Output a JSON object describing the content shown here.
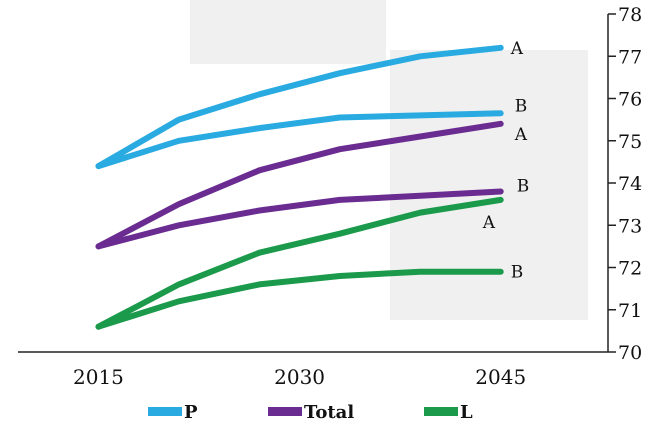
{
  "chart_data": {
    "type": "line",
    "title": "",
    "xlabel": "",
    "ylabel": "",
    "x_ticks": [
      "2015",
      "2030",
      "2045"
    ],
    "y_ticks": [
      "70",
      "71",
      "72",
      "73",
      "74",
      "75",
      "76",
      "77",
      "78"
    ],
    "ylim": [
      70,
      78
    ],
    "xlim": [
      2009,
      2053
    ],
    "y_axis_position": "right",
    "grid": false,
    "legend": {
      "placement": "bottom",
      "entries": [
        "P",
        "Total",
        "L"
      ]
    },
    "colors": {
      "P": "#29abe2",
      "Total": "#6a2c91",
      "L": "#1a9a4a"
    },
    "series": [
      {
        "name": "P",
        "scenario": "A",
        "x": [
          2015,
          2021,
          2027,
          2033,
          2039,
          2045
        ],
        "y": [
          74.4,
          75.5,
          76.1,
          76.6,
          77.0,
          77.2
        ]
      },
      {
        "name": "P",
        "scenario": "B",
        "x": [
          2015,
          2021,
          2027,
          2033,
          2039,
          2045
        ],
        "y": [
          74.4,
          75.0,
          75.3,
          75.55,
          75.6,
          75.65
        ]
      },
      {
        "name": "Total",
        "scenario": "A",
        "x": [
          2015,
          2021,
          2027,
          2033,
          2039,
          2045
        ],
        "y": [
          72.5,
          73.5,
          74.3,
          74.8,
          75.1,
          75.4
        ]
      },
      {
        "name": "Total",
        "scenario": "B",
        "x": [
          2015,
          2021,
          2027,
          2033,
          2039,
          2045
        ],
        "y": [
          72.5,
          73.0,
          73.35,
          73.6,
          73.7,
          73.8
        ]
      },
      {
        "name": "L",
        "scenario": "A",
        "x": [
          2015,
          2021,
          2027,
          2033,
          2039,
          2045
        ],
        "y": [
          70.6,
          71.6,
          72.35,
          72.8,
          73.3,
          73.6
        ]
      },
      {
        "name": "L",
        "scenario": "B",
        "x": [
          2015,
          2021,
          2027,
          2033,
          2039,
          2045
        ],
        "y": [
          70.6,
          71.2,
          71.6,
          71.8,
          71.9,
          71.9
        ]
      }
    ]
  }
}
